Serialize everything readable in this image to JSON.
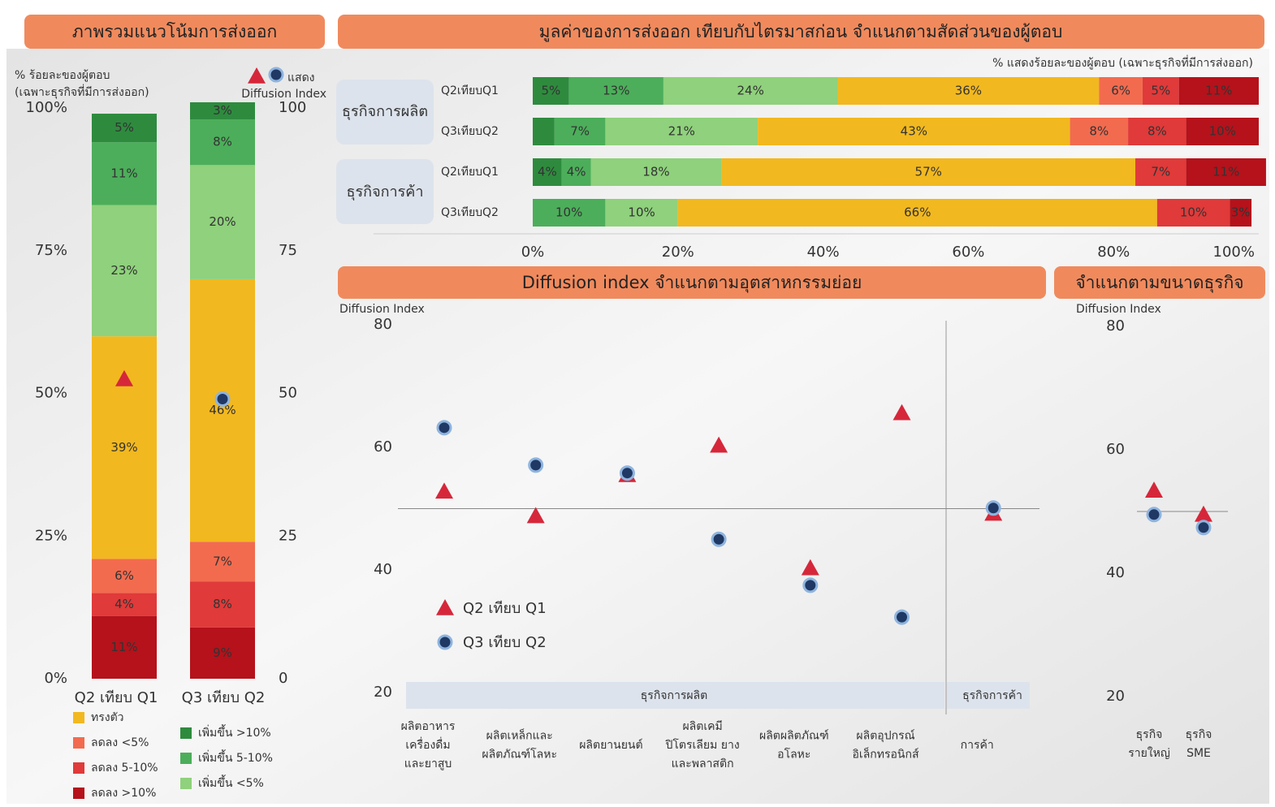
{
  "chart_data": [
    {
      "type": "stacked_bar",
      "title": "ภาพรวมแนวโน้มการส่งออก",
      "ylabel": [
        "% ร้อยละของผู้ตอบ",
        "(เฉพาะธุรกิจที่มีการส่งออก)"
      ],
      "y2label": [
        "แสดง",
        "Diffusion Index"
      ],
      "categories": [
        "Q2 เทียบ Q1",
        "Q3 เทียบ Q2"
      ],
      "series": [
        {
          "name": "ลดลง >10%",
          "color": "#b5121b",
          "values": [
            11,
            9
          ],
          "value_labels": [
            "11%",
            "9%"
          ]
        },
        {
          "name": "ลดลง 5-10%",
          "color": "#e03a3a",
          "values": [
            4,
            8
          ],
          "value_labels": [
            "4%",
            "8%"
          ]
        },
        {
          "name": "ลดลง <5%",
          "color": "#f26b4f",
          "values": [
            6,
            7
          ],
          "value_labels": [
            "6%",
            "7%"
          ]
        },
        {
          "name": "ทรงตัว",
          "color": "#f2b81f",
          "values": [
            39,
            46
          ],
          "value_labels": [
            "39%",
            "46%"
          ]
        },
        {
          "name": "เพิ่มขึ้น <5%",
          "color": "#8fd17c",
          "values": [
            23,
            20
          ],
          "value_labels": [
            "23%",
            "20%"
          ]
        },
        {
          "name": "เพิ่มขึ้น 5-10%",
          "color": "#4cae5a",
          "values": [
            11,
            8
          ],
          "value_labels": [
            "11%",
            "8%"
          ]
        },
        {
          "name": "เพิ่มขึ้น >10%",
          "color": "#2e8b3e",
          "values": [
            5,
            3
          ],
          "value_labels": [
            "5%",
            "3%"
          ]
        }
      ],
      "markers": [
        {
          "shape": "triangle",
          "color": "#d6273a",
          "axis": "y2",
          "values": [
            52.5,
            null
          ]
        },
        {
          "shape": "circle",
          "color": "#1f3864",
          "axis": "y2",
          "values": [
            null,
            49
          ]
        }
      ],
      "ylim": [
        0,
        100
      ],
      "yticks": [
        {
          "value": 0,
          "label": "0%"
        },
        {
          "value": 25,
          "label": "25%"
        },
        {
          "value": 50,
          "label": "50%"
        },
        {
          "value": 75,
          "label": "75%"
        },
        {
          "value": 100,
          "label": "100%"
        }
      ],
      "y2lim": [
        0,
        100
      ],
      "y2ticks": [
        0,
        25,
        50,
        75,
        100
      ]
    },
    {
      "type": "stacked_barh",
      "title": "มูลค่าของการส่งออก เทียบกับไตรมาสก่อน จำแนกตามสัดส่วนของผู้ตอบ",
      "subtitle": "% แสดงร้อยละของผู้ตอบ (เฉพาะธุรกิจที่มีการส่งออก)",
      "groups": [
        "ธุรกิจการผลิต",
        "ธุรกิจการค้า"
      ],
      "categories": [
        "Q2เทียบQ1",
        "Q3เทียบQ2",
        "Q2เทียบQ1",
        "Q3เทียบQ2"
      ],
      "series": [
        {
          "color": "#2e8b3e",
          "values": [
            5,
            3,
            4,
            0
          ],
          "value_labels": [
            "5%",
            null,
            "4%",
            null
          ]
        },
        {
          "color": "#4cae5a",
          "values": [
            13,
            7,
            4,
            10
          ],
          "value_labels": [
            "13%",
            "7%",
            "4%",
            "10%"
          ]
        },
        {
          "color": "#8fd17c",
          "values": [
            24,
            21,
            18,
            10
          ],
          "value_labels": [
            "24%",
            "21%",
            "18%",
            "10%"
          ]
        },
        {
          "color": "#f2b81f",
          "values": [
            36,
            43,
            57,
            66
          ],
          "value_labels": [
            "36%",
            "43%",
            "57%",
            "66%"
          ]
        },
        {
          "color": "#f26b4f",
          "values": [
            6,
            8,
            0,
            0
          ],
          "value_labels": [
            "6%",
            "8%",
            null,
            null
          ]
        },
        {
          "color": "#e03a3a",
          "values": [
            5,
            8,
            7,
            10
          ],
          "value_labels": [
            "5%",
            "8%",
            "7%",
            "10%"
          ]
        },
        {
          "color": "#b5121b",
          "values": [
            11,
            10,
            11,
            3
          ],
          "value_labels": [
            "11%",
            "10%",
            "11%",
            "3%"
          ]
        }
      ],
      "xlim": [
        0,
        100
      ],
      "xticks": [
        {
          "value": 0,
          "label": "0%"
        },
        {
          "value": 20,
          "label": "20%"
        },
        {
          "value": 40,
          "label": "40%"
        },
        {
          "value": 60,
          "label": "60%"
        },
        {
          "value": 80,
          "label": "80%"
        },
        {
          "value": 100,
          "label": "100%"
        }
      ]
    },
    {
      "type": "scatter",
      "title": "Diffusion index จำแนกตามอุตสาหกรรมย่อย",
      "ylabel": "Diffusion Index",
      "groups": [
        "ธุรกิจการผลิต",
        "ธุรกิจการค้า"
      ],
      "categories": [
        [
          "ผลิตอาหาร",
          "เครื่องดื่ม",
          "และยาสูบ"
        ],
        [
          "ผลิตเหล็กและ",
          "ผลิตภัณฑ์โลหะ"
        ],
        [
          "ผลิตยานยนต์"
        ],
        [
          "ผลิตเคมี",
          "ปิโตรเลียม ยาง",
          "และพลาสติก"
        ],
        [
          "ผลิตผลิตภัณฑ์",
          "อโลหะ"
        ],
        [
          "ผลิตอุปกรณ์",
          "อิเล็กทรอนิกส์"
        ],
        [
          "การค้า"
        ]
      ],
      "series": [
        {
          "name": "Q2 เทียบ Q1",
          "shape": "triangle",
          "color": "#d6273a",
          "values": [
            52.8,
            48.8,
            55.5,
            60.3,
            40.3,
            65.6,
            49.2
          ]
        },
        {
          "name": "Q3 เทียบ Q2",
          "shape": "circle",
          "color": "#1f3864",
          "values": [
            63.2,
            57.1,
            55.8,
            45.0,
            37.5,
            32.3,
            50.1
          ]
        }
      ],
      "ylim": [
        20,
        80
      ],
      "yticks": [
        20,
        40,
        60,
        80
      ],
      "hline": 50
    },
    {
      "type": "scatter",
      "title": "จำแนกตามขนาดธุรกิจ",
      "ylabel": "Diffusion Index",
      "categories": [
        [
          "ธุรกิจ",
          "รายใหญ่"
        ],
        [
          "ธุรกิจ",
          "SME"
        ]
      ],
      "series": [
        {
          "shape": "triangle",
          "color": "#d6273a",
          "values": [
            53.4,
            49.5
          ]
        },
        {
          "shape": "circle",
          "color": "#1f3864",
          "values": [
            49.5,
            47.4
          ]
        }
      ],
      "ylim": [
        20,
        80
      ],
      "yticks": [
        20,
        40,
        60,
        80
      ],
      "hline": 50
    }
  ]
}
